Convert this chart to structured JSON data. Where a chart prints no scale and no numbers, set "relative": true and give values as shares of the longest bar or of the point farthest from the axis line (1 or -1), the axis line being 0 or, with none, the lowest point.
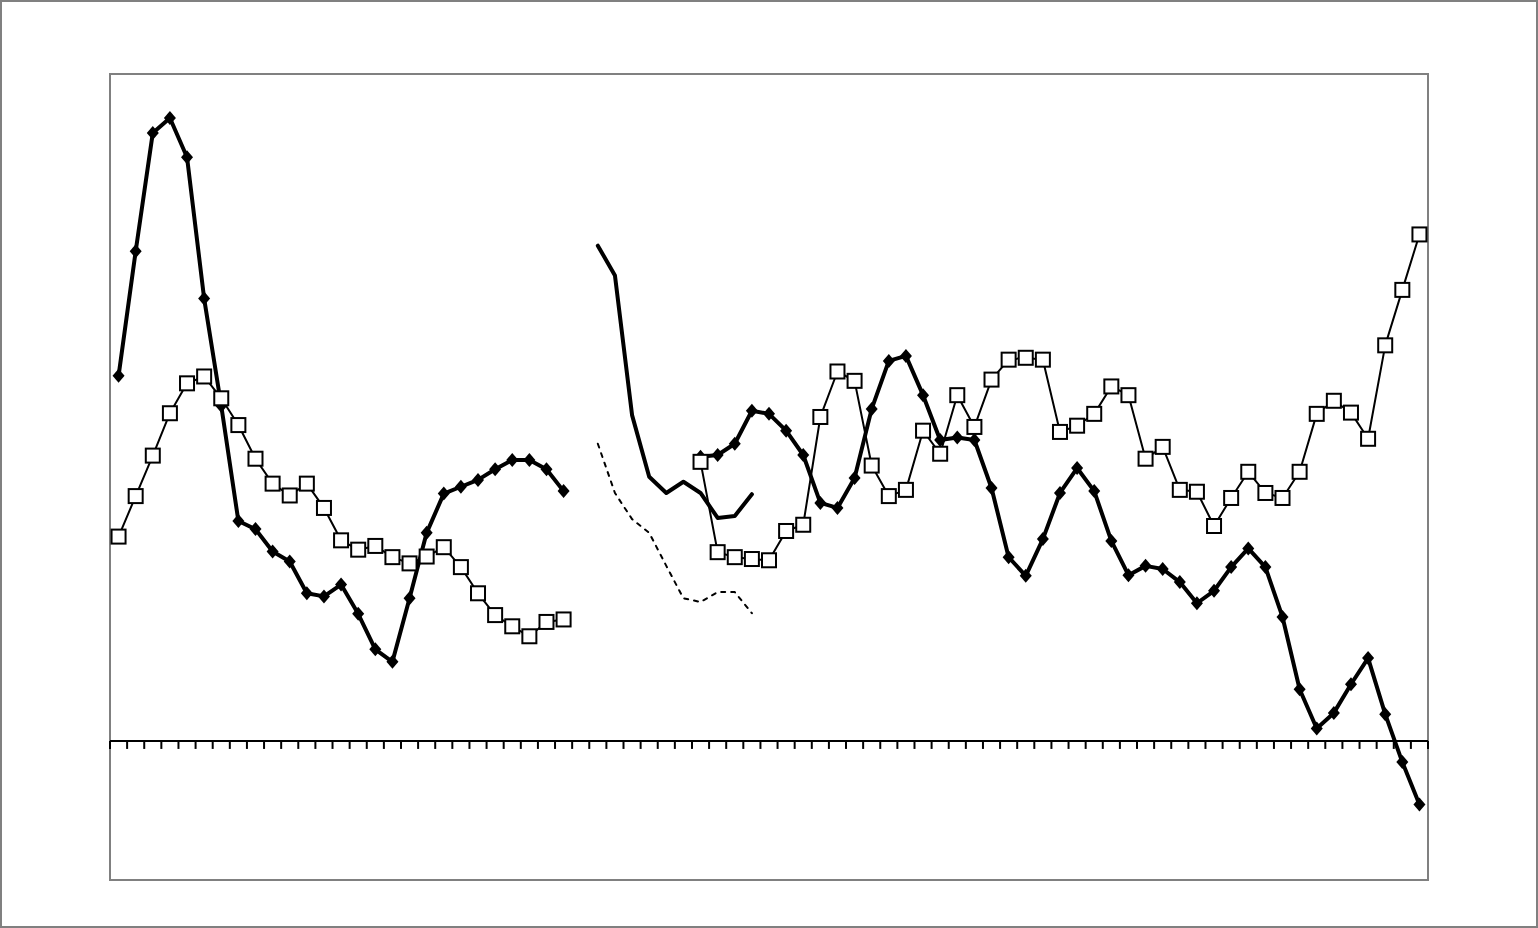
{
  "chart_data": {
    "type": "line",
    "relative": true,
    "categories": [
      null,
      null,
      null,
      null,
      null,
      null,
      null,
      null,
      null,
      null,
      null,
      null,
      null,
      null,
      null,
      null,
      null,
      null,
      null,
      null,
      null,
      null,
      null,
      null,
      null,
      null,
      null,
      null,
      null,
      null,
      null,
      null,
      null,
      null,
      null,
      null,
      null,
      null,
      null,
      null,
      null,
      null,
      null,
      null,
      null,
      null,
      null,
      null,
      null,
      null,
      null,
      null,
      null,
      null,
      null,
      null,
      null,
      null,
      null,
      null,
      null,
      null,
      null,
      null,
      null,
      null,
      null,
      null,
      null,
      null,
      null,
      null,
      null,
      null,
      null,
      null,
      null
    ],
    "series": [
      {
        "color": "#000000",
        "marker": "diamond",
        "line_style": "solid",
        "values": [
          0.586,
          0.786,
          0.976,
          1,
          0.937,
          0.71,
          0.538,
          0.353,
          0.34,
          0.304,
          0.288,
          0.237,
          0.232,
          0.251,
          0.204,
          0.147,
          0.127,
          0.229,
          0.334,
          0.397,
          0.408,
          0.419,
          0.436,
          0.451,
          0.451,
          0.436,
          0.401,
          null,
          null,
          null,
          null,
          null,
          null,
          null,
          0.456,
          0.459,
          0.477,
          0.53,
          0.525,
          0.498,
          0.459,
          0.382,
          0.374,
          0.422,
          0.533,
          0.61,
          0.618,
          0.555,
          0.483,
          0.487,
          0.483,
          0.406,
          0.295,
          0.265,
          0.324,
          0.398,
          0.438,
          0.401,
          0.321,
          0.266,
          0.281,
          0.276,
          0.255,
          0.221,
          0.241,
          0.279,
          0.309,
          0.279,
          0.199,
          0.083,
          0.02,
          0.045,
          0.091,
          0.133,
          0.043,
          -0.034,
          -0.102
        ]
      },
      {
        "color": "#000000",
        "marker": "square",
        "line_style": "solid",
        "values": [
          0.328,
          0.393,
          0.458,
          0.526,
          0.574,
          0.585,
          0.55,
          0.507,
          0.453,
          0.413,
          0.394,
          0.413,
          0.374,
          0.322,
          0.307,
          0.313,
          0.295,
          0.285,
          0.296,
          0.311,
          0.279,
          0.237,
          0.202,
          0.184,
          0.168,
          0.191,
          0.195,
          null,
          null,
          null,
          null,
          null,
          null,
          null,
          0.448,
          0.303,
          0.295,
          0.292,
          0.29,
          0.337,
          0.347,
          0.52,
          0.593,
          0.578,
          0.442,
          0.393,
          0.403,
          0.498,
          0.461,
          0.555,
          0.504,
          0.58,
          0.612,
          0.615,
          0.612,
          0.496,
          0.506,
          0.525,
          0.569,
          0.555,
          0.453,
          0.472,
          0.403,
          0.4,
          0.345,
          0.39,
          0.432,
          0.398,
          0.39,
          0.432,
          0.525,
          0.546,
          0.527,
          0.485,
          0.635,
          0.724,
          0.813
        ]
      },
      {
        "color": "#000000",
        "marker": "none",
        "line_style": "solid",
        "values": [
          null,
          null,
          null,
          null,
          null,
          null,
          null,
          null,
          null,
          null,
          null,
          null,
          null,
          null,
          null,
          null,
          null,
          null,
          null,
          null,
          null,
          null,
          null,
          null,
          null,
          null,
          null,
          null,
          0.795,
          0.747,
          0.523,
          0.424,
          0.398,
          0.416,
          0.398,
          0.358,
          0.361,
          0.396,
          null,
          null,
          null,
          null,
          null,
          null,
          null,
          null,
          null,
          null,
          null,
          null,
          null,
          null,
          null,
          null,
          null,
          null,
          null,
          null,
          null,
          null,
          null,
          null,
          null,
          null,
          null,
          null,
          null,
          null,
          null,
          null,
          null,
          null,
          null,
          null,
          null,
          null,
          null
        ]
      },
      {
        "color": "#000000",
        "marker": "none",
        "line_style": "dotted",
        "values": [
          null,
          null,
          null,
          null,
          null,
          null,
          null,
          null,
          null,
          null,
          null,
          null,
          null,
          null,
          null,
          null,
          null,
          null,
          null,
          null,
          null,
          null,
          null,
          null,
          null,
          null,
          null,
          null,
          0.477,
          0.398,
          0.356,
          0.334,
          0.281,
          0.229,
          0.223,
          0.239,
          0.239,
          0.205,
          null,
          null,
          null,
          null,
          null,
          null,
          null,
          null,
          null,
          null,
          null,
          null,
          null,
          null,
          null,
          null,
          null,
          null,
          null,
          null,
          null,
          null,
          null,
          null,
          null,
          null,
          null,
          null,
          null,
          null,
          null,
          null,
          null,
          null,
          null,
          null,
          null,
          null,
          null
        ]
      }
    ]
  }
}
